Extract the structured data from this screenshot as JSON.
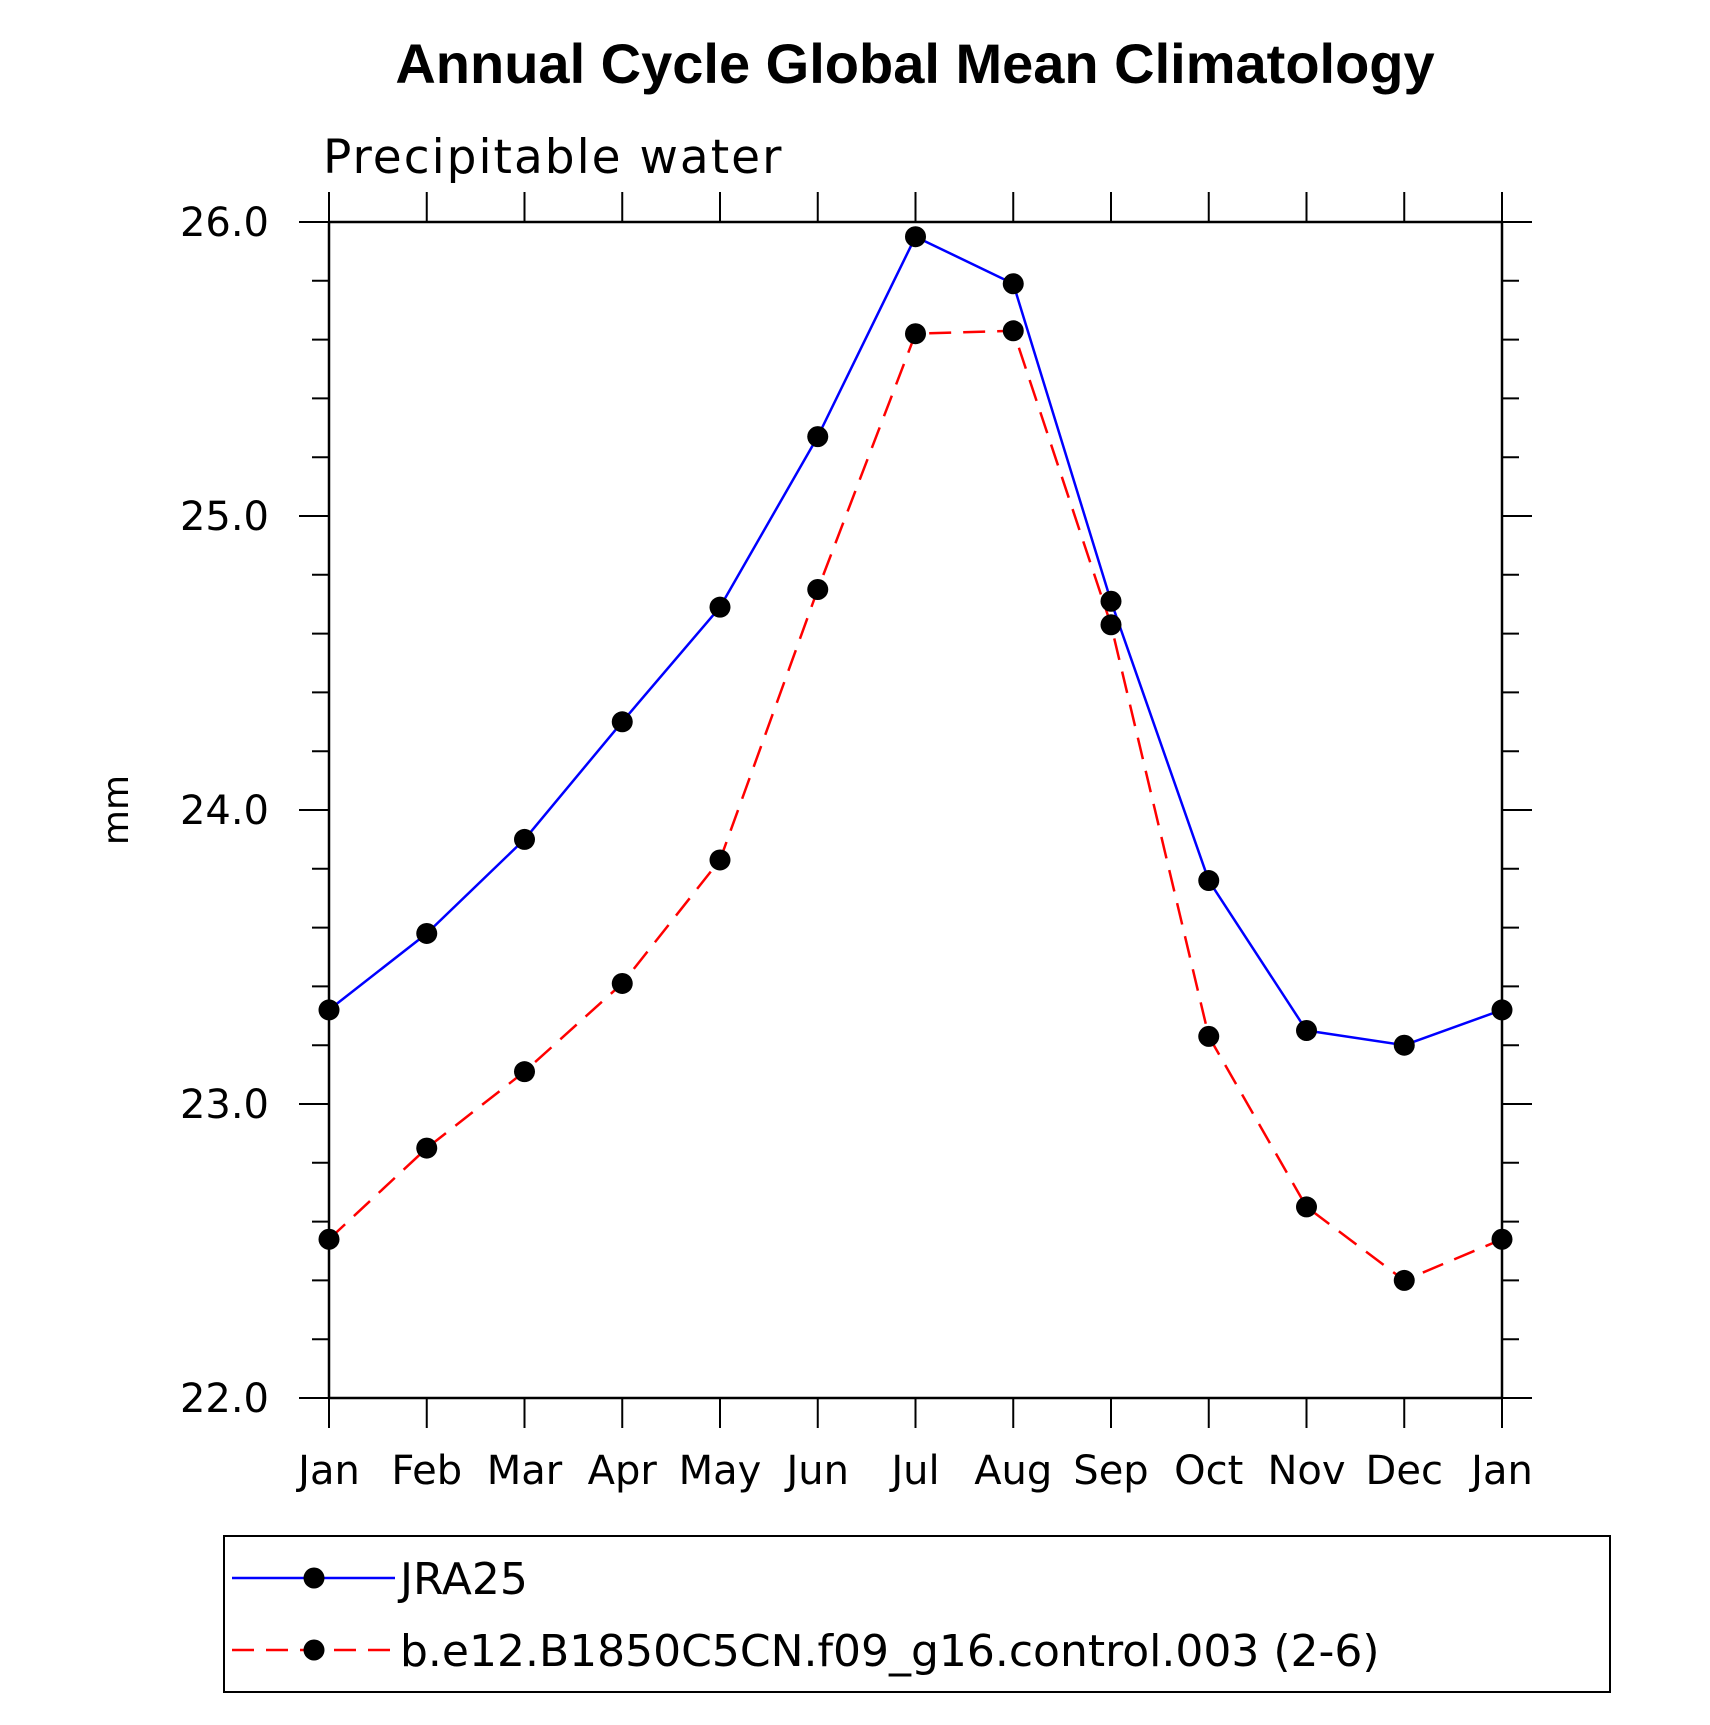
{
  "chart_data": {
    "type": "line",
    "title": "Annual Cycle Global Mean Climatology",
    "subtitle": "Precipitable water",
    "ylabel": "mm",
    "xlabel": "",
    "categories": [
      "Jan",
      "Feb",
      "Mar",
      "Apr",
      "May",
      "Jun",
      "Jul",
      "Aug",
      "Sep",
      "Oct",
      "Nov",
      "Dec",
      "Jan"
    ],
    "ylim": [
      22.0,
      26.0
    ],
    "yticks": [
      22.0,
      23.0,
      24.0,
      25.0,
      26.0
    ],
    "ytick_labels": [
      "22.0",
      "23.0",
      "24.0",
      "25.0",
      "26.0"
    ],
    "y_minor_step": 0.2,
    "grid": false,
    "legend_position": "bottom",
    "series": [
      {
        "name": "JRA25",
        "color": "#0000ff",
        "line_style": "solid",
        "marker": "filled-circle",
        "values": [
          23.32,
          23.58,
          23.9,
          24.3,
          24.69,
          25.27,
          25.95,
          25.79,
          24.71,
          23.76,
          23.25,
          23.2,
          23.32
        ]
      },
      {
        "name": "b.e12.B1850C5CN.f09_g16.control.003 (2-6)",
        "color": "#ff0000",
        "line_style": "dashed",
        "marker": "filled-circle",
        "values": [
          22.54,
          22.85,
          23.11,
          23.41,
          23.83,
          24.75,
          25.62,
          25.63,
          24.63,
          23.23,
          22.65,
          22.4,
          22.54
        ]
      }
    ]
  }
}
